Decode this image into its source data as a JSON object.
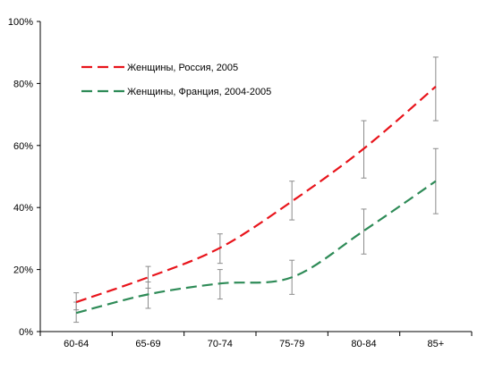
{
  "chart_data": {
    "type": "line",
    "categories": [
      "60-64",
      "65-69",
      "70-74",
      "75-79",
      "80-84",
      "85+"
    ],
    "ylim": [
      0,
      100
    ],
    "yticks": [
      "0%",
      "20%",
      "40%",
      "60%",
      "80%",
      "100%"
    ],
    "legend_position": "top-left",
    "grid": false,
    "series": [
      {
        "name": "Женщины, Россия, 2005",
        "color": "#e8141b",
        "dash": "dashed",
        "smooth": true,
        "values": [
          9.5,
          17.5,
          27.0,
          42.0,
          59.0,
          79.0
        ],
        "error_low": [
          7.0,
          14.0,
          22.0,
          36.0,
          49.5,
          68.0
        ],
        "error_high": [
          12.5,
          21.0,
          31.5,
          48.5,
          68.0,
          88.5
        ]
      },
      {
        "name": "Женщины, Франция, 2004-2005",
        "color": "#2e8b57",
        "dash": "dashed",
        "smooth": true,
        "values": [
          6.0,
          12.0,
          15.5,
          17.5,
          32.5,
          48.5
        ],
        "error_low": [
          3.0,
          7.5,
          10.5,
          12.0,
          25.0,
          38.0
        ],
        "error_high": [
          9.5,
          16.0,
          20.0,
          23.0,
          39.5,
          59.0
        ]
      }
    ]
  }
}
